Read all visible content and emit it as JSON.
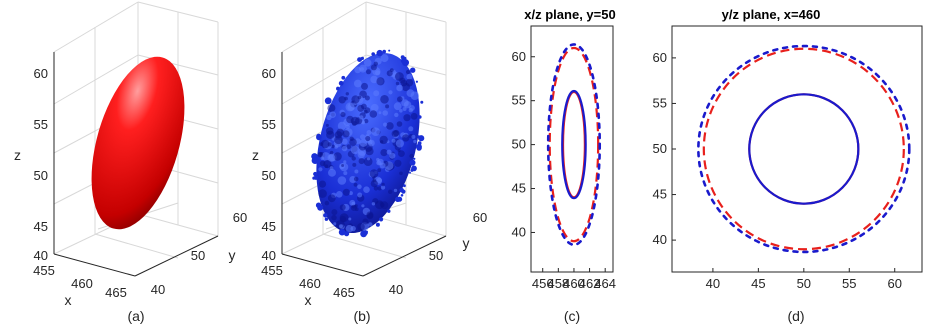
{
  "colors": {
    "truth": "#e8201c",
    "estimate": "#1a1acc",
    "axis": "#262626",
    "grid": "#d8d8d8"
  },
  "chart_data": [
    {
      "panel": "a",
      "type": "surface3d",
      "caption": "(a)",
      "surface_color": "red",
      "xlabel": "x",
      "ylabel": "y",
      "zlabel": "z",
      "xticks": [
        "455",
        "460",
        "465"
      ],
      "yticks": [
        "40",
        "50",
        "60"
      ],
      "zticks": [
        "40",
        "45",
        "50",
        "55",
        "60"
      ],
      "xlim": [
        455,
        465
      ],
      "ylim": [
        40,
        60
      ],
      "zlim": [
        40,
        60
      ],
      "grid": true
    },
    {
      "panel": "b",
      "type": "surface3d",
      "caption": "(b)",
      "surface_color": "blue",
      "xlabel": "x",
      "ylabel": "y",
      "zlabel": "z",
      "xticks": [
        "455",
        "460",
        "465"
      ],
      "yticks": [
        "40",
        "50",
        "60"
      ],
      "zticks": [
        "40",
        "45",
        "50",
        "55",
        "60"
      ],
      "xlim": [
        455,
        465
      ],
      "ylim": [
        40,
        60
      ],
      "zlim": [
        40,
        60
      ],
      "grid": true
    },
    {
      "panel": "c",
      "type": "contour",
      "title": "x/z plane, y=50",
      "caption": "(c)",
      "xlim": [
        454.5,
        465
      ],
      "ylim": [
        35.5,
        63.5
      ],
      "xticks": [
        456,
        458,
        460,
        462,
        464
      ],
      "yticks": [
        40,
        45,
        50,
        55,
        60
      ],
      "series": [
        {
          "style": "red-dashed",
          "shape": "ellipse",
          "cx": 460,
          "cy": 50,
          "rx": 3.1,
          "ry": 11
        },
        {
          "style": "red-solid",
          "shape": "ellipse",
          "cx": 460,
          "cy": 50,
          "rx": 1.4,
          "ry": 6
        },
        {
          "style": "blue-dotted",
          "shape": "ellipse",
          "cx": 460,
          "cy": 50,
          "rx": 3.3,
          "ry": 11.4
        },
        {
          "style": "blue-solid",
          "shape": "ellipse",
          "cx": 460,
          "cy": 50,
          "rx": 1.5,
          "ry": 6.1
        }
      ]
    },
    {
      "panel": "d",
      "type": "contour",
      "title": "y/z plane, x=460",
      "caption": "(d)",
      "xlim": [
        35.5,
        63
      ],
      "ylim": [
        36.5,
        63.5
      ],
      "xticks": [
        40,
        45,
        50,
        55,
        60
      ],
      "yticks": [
        40,
        45,
        50,
        55,
        60
      ],
      "series": [
        {
          "style": "red-dashed",
          "shape": "ellipse",
          "cx": 50,
          "cy": 50,
          "rx": 11,
          "ry": 11
        },
        {
          "style": "red-solid",
          "shape": "ellipse",
          "cx": 50,
          "cy": 50,
          "rx": 6,
          "ry": 6
        },
        {
          "style": "blue-dotted",
          "shape": "ellipse",
          "cx": 50,
          "cy": 50,
          "rx": 11.6,
          "ry": 11.3
        },
        {
          "style": "blue-solid",
          "shape": "ellipse",
          "cx": 50,
          "cy": 50,
          "rx": 6,
          "ry": 6
        }
      ]
    }
  ]
}
